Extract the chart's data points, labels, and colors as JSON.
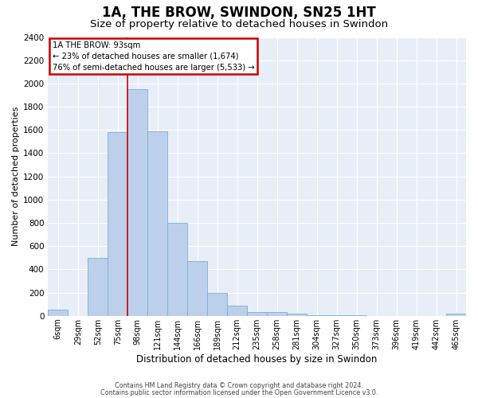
{
  "title": "1A, THE BROW, SWINDON, SN25 1HT",
  "subtitle": "Size of property relative to detached houses in Swindon",
  "xlabel": "Distribution of detached houses by size in Swindon",
  "ylabel": "Number of detached properties",
  "footer_line1": "Contains HM Land Registry data © Crown copyright and database right 2024.",
  "footer_line2": "Contains public sector information licensed under the Open Government Licence v3.0.",
  "annotation_line1": "1A THE BROW: 93sqm",
  "annotation_line2": "← 23% of detached houses are smaller (1,674)",
  "annotation_line3": "76% of semi-detached houses are larger (5,533) →",
  "bar_color": "#bdd0eb",
  "bar_edge_color": "#7aaed6",
  "vline_color": "#cc0000",
  "vline_index": 4,
  "categories": [
    "6sqm",
    "29sqm",
    "52sqm",
    "75sqm",
    "98sqm",
    "121sqm",
    "144sqm",
    "166sqm",
    "189sqm",
    "212sqm",
    "235sqm",
    "258sqm",
    "281sqm",
    "304sqm",
    "327sqm",
    "350sqm",
    "373sqm",
    "396sqm",
    "419sqm",
    "442sqm",
    "465sqm"
  ],
  "values": [
    50,
    0,
    500,
    1580,
    1950,
    1590,
    800,
    470,
    195,
    85,
    35,
    30,
    20,
    5,
    3,
    2,
    1,
    1,
    0,
    0,
    18
  ],
  "ylim": [
    0,
    2400
  ],
  "yticks": [
    0,
    200,
    400,
    600,
    800,
    1000,
    1200,
    1400,
    1600,
    1800,
    2000,
    2200,
    2400
  ],
  "background_color": "#e8eef8",
  "grid_color": "#ffffff",
  "title_fontsize": 12,
  "subtitle_fontsize": 9.5,
  "ylabel_fontsize": 8,
  "xlabel_fontsize": 8.5
}
